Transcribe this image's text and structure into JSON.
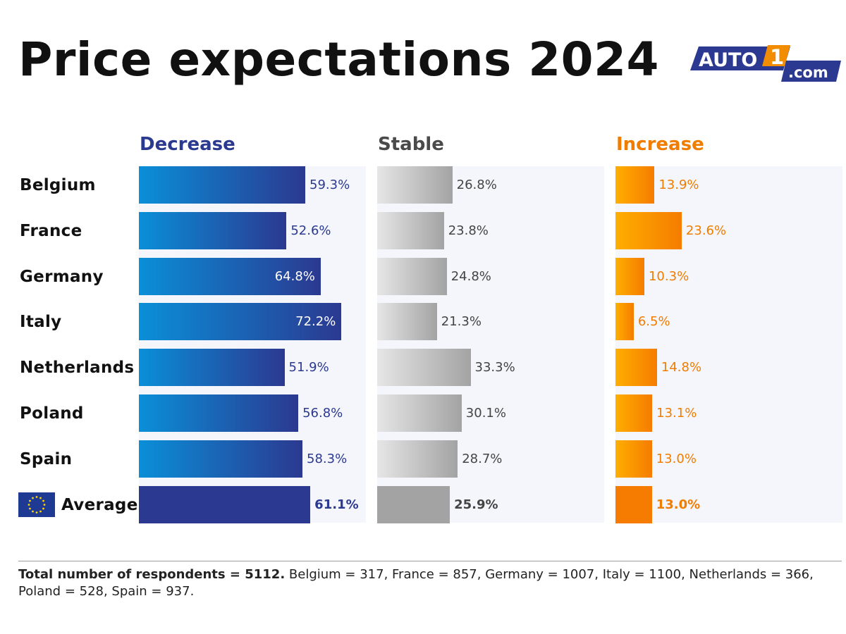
{
  "title": "Price expectations 2024",
  "logo": {
    "text_main": "AUTO",
    "text_num": "1",
    "text_tld": ".com"
  },
  "chart_data": {
    "type": "bar",
    "orientation": "horizontal",
    "unit": "%",
    "categories": [
      "Belgium",
      "France",
      "Germany",
      "Italy",
      "Netherlands",
      "Poland",
      "Spain",
      "Average"
    ],
    "series": [
      {
        "name": "Decrease",
        "values": [
          59.3,
          52.6,
          64.8,
          72.2,
          51.9,
          56.8,
          58.3,
          61.1
        ],
        "labels": [
          "59.3%",
          "52.6%",
          "64.8%",
          "72.2%",
          "51.9%",
          "56.8%",
          "58.3%",
          "61.1%"
        ]
      },
      {
        "name": "Stable",
        "values": [
          26.8,
          23.8,
          24.8,
          21.3,
          33.3,
          30.1,
          28.7,
          25.9
        ],
        "labels": [
          "26.8%",
          "23.8%",
          "24.8%",
          "21.3%",
          "33.3%",
          "30.1%",
          "28.7%",
          "25.9%"
        ]
      },
      {
        "name": "Increase",
        "values": [
          13.9,
          23.6,
          10.3,
          6.5,
          14.8,
          13.1,
          13.0,
          13.0
        ],
        "labels": [
          "13.9%",
          "23.6%",
          "10.3%",
          "6.5%",
          "14.8%",
          "13.1%",
          "13.0%",
          "13.0%"
        ]
      }
    ]
  },
  "colors": {
    "decrease": "#2b3990",
    "decrease_light": "#0a8fd8",
    "stable": "#555555",
    "stable_dark": "#a3a3a3",
    "stable_light": "#e6e6e6",
    "increase": "#f07c00",
    "increase_dark": "#f57c00",
    "increase_light": "#ffae00"
  },
  "footnote": {
    "bold": "Total number of respondents = 5112.",
    "rest": " Belgium = 317, France = 857, Germany = 1007, Italy = 1100, Netherlands = 366, Poland = 528, Spain = 937."
  }
}
